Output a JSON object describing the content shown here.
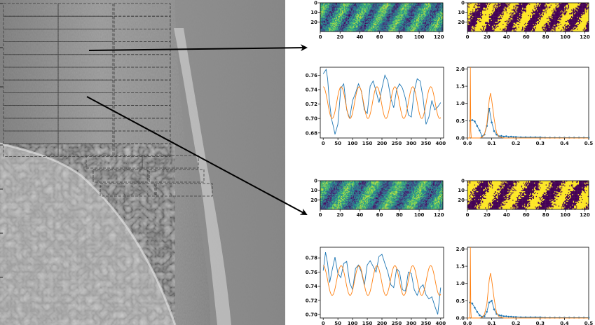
{
  "heatmaps": [
    {
      "id": "hm-top-raw",
      "colormap": "viridis",
      "xticks": [
        0,
        20,
        40,
        60,
        80,
        100,
        120
      ],
      "yticks": [
        0,
        10,
        20
      ],
      "stripes": 6
    },
    {
      "id": "hm-top-binary",
      "colormap": "binary-viridis",
      "xticks": [
        0,
        20,
        40,
        60,
        80,
        100,
        120
      ],
      "yticks": [
        0,
        10,
        20
      ],
      "stripes": 6
    },
    {
      "id": "hm-bottom-raw",
      "colormap": "viridis",
      "xticks": [
        0,
        20,
        40,
        60,
        80,
        100,
        120
      ],
      "yticks": [
        0,
        10,
        20
      ],
      "stripes": 5
    },
    {
      "id": "hm-bottom-binary",
      "colormap": "binary-viridis",
      "xticks": [
        0,
        20,
        40,
        60,
        80,
        100,
        120
      ],
      "yticks": [
        0,
        10,
        20
      ],
      "stripes": 5
    }
  ],
  "chart_data": [
    {
      "type": "line",
      "id": "profile-top",
      "xlim": [
        -10,
        410
      ],
      "ylim": [
        0.673,
        0.771
      ],
      "xticks": [
        0,
        50,
        100,
        150,
        200,
        250,
        300,
        350,
        400
      ],
      "yticks": [
        0.68,
        0.7,
        0.72,
        0.74,
        0.76
      ],
      "series": [
        {
          "color": "#1f77b4",
          "x": [
            0,
            10,
            15,
            20,
            28,
            35,
            40,
            50,
            60,
            70,
            80,
            90,
            100,
            110,
            120,
            130,
            140,
            150,
            160,
            170,
            180,
            190,
            200,
            210,
            220,
            230,
            240,
            250,
            260,
            270,
            280,
            290,
            300,
            310,
            320,
            330,
            340,
            350,
            360,
            370,
            380,
            390,
            400
          ],
          "y": [
            0.762,
            0.768,
            0.755,
            0.728,
            0.7,
            0.688,
            0.678,
            0.692,
            0.742,
            0.748,
            0.712,
            0.7,
            0.725,
            0.735,
            0.748,
            0.738,
            0.712,
            0.707,
            0.745,
            0.752,
            0.738,
            0.722,
            0.742,
            0.76,
            0.752,
            0.728,
            0.715,
            0.74,
            0.748,
            0.742,
            0.728,
            0.705,
            0.702,
            0.738,
            0.755,
            0.752,
            0.728,
            0.692,
            0.702,
            0.725,
            0.712,
            0.716,
            0.722
          ]
        },
        {
          "color": "#ff7f0e",
          "type": "sine",
          "x0": 0,
          "x1": 400,
          "mean": 0.722,
          "amp": 0.022,
          "period": 61,
          "phase": 1.57
        }
      ]
    },
    {
      "type": "line",
      "id": "spectrum-top",
      "xlim": [
        0,
        0.5
      ],
      "ylim": [
        0,
        2.05
      ],
      "xticks": [
        0.0,
        0.1,
        0.2,
        0.3,
        0.4,
        0.5
      ],
      "yticks": [
        0.0,
        0.5,
        1.0,
        1.5,
        2.0
      ],
      "series": [
        {
          "color": "#1f77b4",
          "marker": "dot",
          "x": [
            0.01,
            0.02,
            0.03,
            0.04,
            0.05,
            0.06,
            0.07,
            0.08,
            0.09,
            0.1,
            0.11,
            0.12,
            0.13,
            0.14,
            0.15,
            0.16,
            0.17,
            0.18,
            0.19,
            0.2,
            0.22,
            0.24,
            0.26,
            0.28,
            0.3,
            0.32,
            0.34,
            0.36,
            0.38,
            0.4,
            0.42,
            0.44,
            0.46,
            0.48,
            0.5
          ],
          "y": [
            0.5,
            0.52,
            0.48,
            0.35,
            0.22,
            0.05,
            0.1,
            0.35,
            0.85,
            0.45,
            0.2,
            0.1,
            0.05,
            0.06,
            0.04,
            0.05,
            0.03,
            0.04,
            0.03,
            0.03,
            0.02,
            0.02,
            0.02,
            0.02,
            0.02,
            0.01,
            0.01,
            0.01,
            0.01,
            0.01,
            0.01,
            0.01,
            0.01,
            0.01,
            0.01
          ]
        },
        {
          "color": "#ff7f0e",
          "x": [
            0.0,
            0.01,
            0.012,
            0.014,
            0.016,
            0.02,
            0.03,
            0.05,
            0.06,
            0.07,
            0.08,
            0.085,
            0.09,
            0.095,
            0.1,
            0.11,
            0.12,
            0.13,
            0.15,
            0.2,
            0.3,
            0.4,
            0.5
          ],
          "y": [
            0.0,
            0.0,
            2.05,
            0.2,
            0.0,
            0.0,
            0.0,
            0.0,
            0.02,
            0.1,
            0.4,
            0.75,
            1.1,
            1.3,
            1.1,
            0.55,
            0.15,
            0.04,
            0.0,
            0.0,
            0.0,
            0.0,
            0.0
          ]
        }
      ]
    },
    {
      "type": "line",
      "id": "profile-bottom",
      "xlim": [
        -10,
        410
      ],
      "ylim": [
        0.695,
        0.795
      ],
      "xticks": [
        0,
        50,
        100,
        150,
        200,
        250,
        300,
        350,
        400
      ],
      "yticks": [
        0.7,
        0.72,
        0.74,
        0.76,
        0.78
      ],
      "series": [
        {
          "color": "#1f77b4",
          "x": [
            0,
            8,
            15,
            22,
            30,
            40,
            50,
            60,
            70,
            80,
            90,
            100,
            110,
            120,
            130,
            140,
            150,
            160,
            170,
            180,
            190,
            200,
            210,
            220,
            230,
            240,
            250,
            260,
            270,
            280,
            290,
            300,
            310,
            320,
            330,
            340,
            350,
            360,
            370,
            380,
            390,
            400
          ],
          "y": [
            0.762,
            0.788,
            0.772,
            0.745,
            0.762,
            0.781,
            0.758,
            0.752,
            0.772,
            0.775,
            0.745,
            0.735,
            0.765,
            0.77,
            0.76,
            0.741,
            0.77,
            0.776,
            0.768,
            0.76,
            0.782,
            0.785,
            0.772,
            0.76,
            0.742,
            0.738,
            0.765,
            0.76,
            0.735,
            0.733,
            0.76,
            0.758,
            0.735,
            0.727,
            0.738,
            0.742,
            0.728,
            0.722,
            0.725,
            0.712,
            0.7,
            0.738
          ]
        },
        {
          "color": "#ff7f0e",
          "type": "sine",
          "x0": 0,
          "x1": 400,
          "mean": 0.748,
          "amp": 0.021,
          "period": 61,
          "phase": 1.57
        }
      ]
    },
    {
      "type": "line",
      "id": "spectrum-bottom",
      "xlim": [
        0,
        0.5
      ],
      "ylim": [
        0,
        2.05
      ],
      "xticks": [
        0.0,
        0.1,
        0.2,
        0.3,
        0.4,
        0.5
      ],
      "yticks": [
        0.0,
        0.5,
        1.0,
        1.5,
        2.0
      ],
      "series": [
        {
          "color": "#1f77b4",
          "marker": "dot",
          "x": [
            0.01,
            0.02,
            0.03,
            0.04,
            0.05,
            0.06,
            0.07,
            0.08,
            0.09,
            0.1,
            0.11,
            0.12,
            0.13,
            0.14,
            0.15,
            0.16,
            0.17,
            0.18,
            0.19,
            0.2,
            0.22,
            0.24,
            0.26,
            0.28,
            0.3,
            0.32,
            0.34,
            0.36,
            0.38,
            0.4,
            0.42,
            0.44,
            0.46,
            0.48,
            0.5
          ],
          "y": [
            0.45,
            0.42,
            0.3,
            0.18,
            0.08,
            0.04,
            0.05,
            0.18,
            0.45,
            0.5,
            0.25,
            0.12,
            0.08,
            0.07,
            0.05,
            0.05,
            0.04,
            0.04,
            0.03,
            0.03,
            0.02,
            0.02,
            0.02,
            0.02,
            0.02,
            0.01,
            0.01,
            0.01,
            0.01,
            0.01,
            0.01,
            0.01,
            0.01,
            0.01,
            0.01
          ]
        },
        {
          "color": "#ff7f0e",
          "x": [
            0.0,
            0.01,
            0.012,
            0.014,
            0.016,
            0.02,
            0.03,
            0.05,
            0.06,
            0.07,
            0.08,
            0.085,
            0.09,
            0.095,
            0.1,
            0.11,
            0.12,
            0.13,
            0.15,
            0.2,
            0.3,
            0.4,
            0.5
          ],
          "y": [
            0.0,
            0.0,
            2.05,
            0.2,
            0.0,
            0.0,
            0.0,
            0.0,
            0.02,
            0.1,
            0.4,
            0.75,
            1.1,
            1.3,
            1.1,
            0.55,
            0.15,
            0.04,
            0.0,
            0.0,
            0.0,
            0.0,
            0.0
          ]
        }
      ]
    }
  ]
}
